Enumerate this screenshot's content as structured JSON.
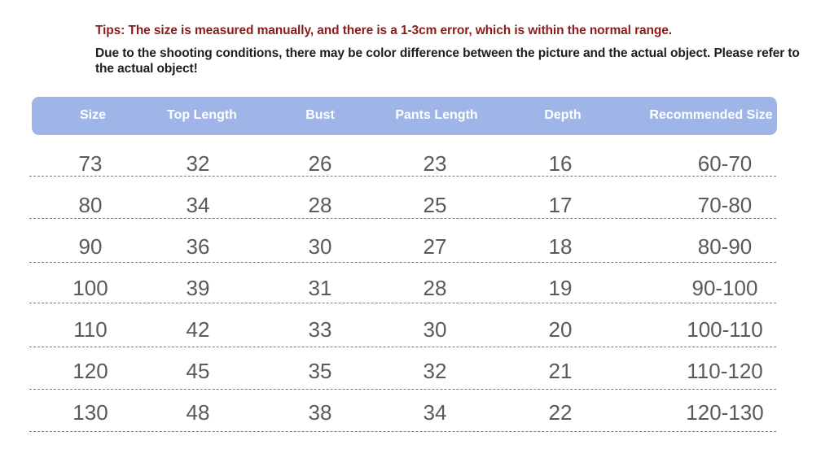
{
  "tips": "Tips: The size is measured manually, and there is a 1-3cm error, which is within the normal range.",
  "note": "Due to the shooting conditions, there may be color difference between the picture and the actual object. Please refer to the actual object!",
  "table": {
    "headers": [
      "Size",
      "Top Length",
      "Bust",
      "Pants Length",
      "Depth",
      "Recommended Size"
    ],
    "rows": [
      [
        "73",
        "32",
        "26",
        "23",
        "16",
        "60-70"
      ],
      [
        "80",
        "34",
        "28",
        "25",
        "17",
        "70-80"
      ],
      [
        "90",
        "36",
        "30",
        "27",
        "18",
        "80-90"
      ],
      [
        "100",
        "39",
        "31",
        "28",
        "19",
        "90-100"
      ],
      [
        "110",
        "42",
        "33",
        "30",
        "20",
        "100-110"
      ],
      [
        "120",
        "45",
        "35",
        "32",
        "21",
        "110-120"
      ],
      [
        "130",
        "48",
        "38",
        "34",
        "22",
        "120-130"
      ]
    ]
  },
  "colors": {
    "header_bg": "#9fb5e8",
    "tips_text": "#8b1c1c",
    "cell_text": "#5a5a5a"
  }
}
